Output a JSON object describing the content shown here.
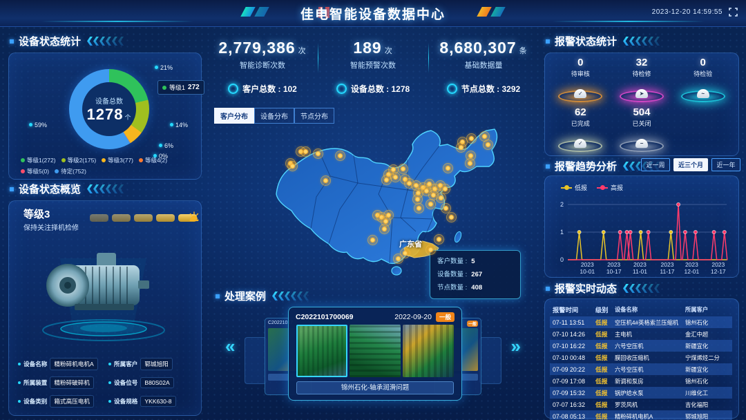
{
  "header": {
    "title": "佳电智能设备数据中心",
    "datetime": "2023-12-20 14:59:55"
  },
  "left": {
    "status_stats": {
      "title": "设备状态统计",
      "center": {
        "label": "设备总数",
        "value": "1278",
        "unit": "个"
      },
      "chip": {
        "label": "等级1",
        "value": "272"
      },
      "callouts": [
        "21%",
        "14%",
        "6%",
        "0%",
        "59%"
      ]
    },
    "overview": {
      "title": "设备状态概览",
      "level": "等级3",
      "advice": "保持关注择机检修",
      "bars": 5,
      "details": [
        {
          "label": "设备名称",
          "value": "精粉碎机电机A"
        },
        {
          "label": "所属客户",
          "value": "郓城旭阳"
        },
        {
          "label": "所属装置",
          "value": "精粉碎破碎机"
        },
        {
          "label": "设备位号",
          "value": "B80S02A"
        },
        {
          "label": "设备类别",
          "value": "箱式高压电机"
        },
        {
          "label": "设备规格",
          "value": "YKK630-8"
        }
      ]
    }
  },
  "center": {
    "kpis": [
      {
        "value": "2,779,386",
        "unit": "次",
        "label": "智能诊断次数"
      },
      {
        "value": "189",
        "unit": "次",
        "label": "智能预警次数"
      },
      {
        "value": "8,680,307",
        "unit": "条",
        "label": "基础数据量"
      }
    ],
    "totals": [
      {
        "label": "客户总数",
        "value": "102"
      },
      {
        "label": "设备总数",
        "value": "1278"
      },
      {
        "label": "节点总数",
        "value": "3292"
      }
    ],
    "tabs": [
      {
        "label": "客户分布",
        "active": true
      },
      {
        "label": "设备分布",
        "active": false
      },
      {
        "label": "节点分布",
        "active": false
      }
    ],
    "map": {
      "region_label": "广东省",
      "tooltip": [
        {
          "label": "客户数量",
          "value": "5"
        },
        {
          "label": "设备数量",
          "value": "267"
        },
        {
          "label": "节点数量",
          "value": "408"
        }
      ],
      "dots": [
        [
          95,
          36
        ],
        [
          102,
          36
        ],
        [
          120,
          39
        ],
        [
          80,
          53
        ],
        [
          83,
          57
        ],
        [
          152,
          42
        ],
        [
          131,
          78
        ],
        [
          329,
          22
        ],
        [
          342,
          17
        ],
        [
          361,
          14
        ],
        [
          366,
          26
        ],
        [
          327,
          30
        ],
        [
          341,
          42
        ],
        [
          340,
          53
        ],
        [
          308,
          60
        ],
        [
          222,
          69
        ],
        [
          229,
          62
        ],
        [
          243,
          61
        ],
        [
          219,
          77
        ],
        [
          232,
          73
        ],
        [
          246,
          76
        ],
        [
          252,
          82
        ],
        [
          262,
          85
        ],
        [
          272,
          88
        ],
        [
          281,
          83
        ],
        [
          289,
          90
        ],
        [
          297,
          85
        ],
        [
          304,
          90
        ],
        [
          265,
          96
        ],
        [
          277,
          93
        ],
        [
          287,
          99
        ],
        [
          298,
          103
        ],
        [
          264,
          105
        ],
        [
          283,
          112
        ],
        [
          266,
          118
        ],
        [
          305,
          118
        ],
        [
          313,
          131
        ],
        [
          206,
          128
        ],
        [
          212,
          131
        ],
        [
          222,
          128
        ],
        [
          218,
          137
        ],
        [
          216,
          148
        ],
        [
          199,
          164
        ],
        [
          295,
          163
        ],
        [
          283,
          178
        ],
        [
          246,
          183
        ],
        [
          236,
          191
        ]
      ]
    },
    "cases": {
      "title": "处理案例",
      "card": {
        "code": "C2022101700069",
        "date": "2022-09-20",
        "badge": "一般",
        "caption": "锦州石化-轴承润滑问题"
      },
      "left_card": {
        "code": "C20221017"
      },
      "right_card": {
        "date_partial": "0-14",
        "badge": "一般"
      }
    }
  },
  "right": {
    "alarm_stats": {
      "title": "报警状态统计",
      "items": [
        {
          "value": "0",
          "label": "待审核",
          "color": "#ffa22e",
          "icon": "✓"
        },
        {
          "value": "32",
          "label": "待检修",
          "color": "#ff4ddb",
          "icon": "➤"
        },
        {
          "value": "0",
          "label": "待检验",
          "color": "#1fe0f0",
          "icon": "~"
        },
        {
          "value": "62",
          "label": "已完成",
          "color": "#cdd9b4",
          "icon": "✓"
        },
        {
          "value": "504",
          "label": "已关闭",
          "color": "#a8b4c6",
          "icon": "−"
        }
      ]
    },
    "trend": {
      "title": "报警趋势分析",
      "buttons": [
        {
          "label": "近一周",
          "active": false
        },
        {
          "label": "近三个月",
          "active": true
        },
        {
          "label": "近一年",
          "active": false
        }
      ]
    },
    "alarms": {
      "title": "报警实时动态",
      "columns": [
        "报警时间",
        "级别",
        "设备名称",
        "所属客户"
      ],
      "rows": [
        [
          "07-11 13:51",
          "低报",
          "空压机4#英格索兰压缩机",
          "锦州石化"
        ],
        [
          "07-10 14:26",
          "低报",
          "主电机",
          "金汇中超"
        ],
        [
          "07-10 16:22",
          "低报",
          "六号空压机",
          "新疆宜化"
        ],
        [
          "07-10 00:48",
          "低报",
          "膜回收压缩机",
          "宁煤烯烃二分"
        ],
        [
          "07-09 20:22",
          "低报",
          "六号空压机",
          "新疆宜化"
        ],
        [
          "07-09 17:08",
          "低报",
          "新调和泵房",
          "锦州石化"
        ],
        [
          "07-09 15:32",
          "低报",
          "锅炉给水泵",
          "川维化工"
        ],
        [
          "07-07 16:32",
          "低报",
          "罗茨风机",
          "吉化福阳"
        ],
        [
          "07-08 05:13",
          "低报",
          "精粉碎机电机A",
          "郓城旭阳"
        ]
      ]
    }
  },
  "chart_data": [
    {
      "type": "pie",
      "title": "设备状态统计",
      "labels": [
        "等级1",
        "等级2",
        "等级3",
        "等级4",
        "等级5",
        "待定"
      ],
      "values": [
        272,
        175,
        77,
        2,
        0,
        752
      ],
      "percents": [
        "21%",
        "14%",
        "6%",
        "0%",
        "0%",
        "59%"
      ],
      "colors": [
        "#2fc25b",
        "#a0bf1f",
        "#f6b61e",
        "#ff7a2f",
        "#ff4d6a",
        "#3f9bf0"
      ],
      "center_label": "设备总数",
      "center_value": 1278,
      "center_unit": "个",
      "legend_position": "bottom"
    },
    {
      "type": "line",
      "title": "报警趋势分析",
      "ylim": [
        0,
        2
      ],
      "yticks": [
        0,
        1,
        2
      ],
      "xticks": [
        {
          "pos": 0.123,
          "line1": "2023",
          "line2": "10-01"
        },
        {
          "pos": 0.29,
          "line1": "2023",
          "line2": "10-17"
        },
        {
          "pos": 0.454,
          "line1": "2023",
          "line2": "11-01"
        },
        {
          "pos": 0.626,
          "line1": "2023",
          "line2": "11-17"
        },
        {
          "pos": 0.78,
          "line1": "2023",
          "line2": "12-01"
        },
        {
          "pos": 0.947,
          "line1": "2023",
          "line2": "12-17"
        }
      ],
      "grid": true,
      "legend_position": "top-left",
      "series": [
        {
          "name": "低报",
          "color": "#e9c427",
          "spikes": [
            {
              "x": 0.072,
              "y": 1
            },
            {
              "x": 0.225,
              "y": 1
            },
            {
              "x": 0.459,
              "y": 1
            },
            {
              "x": 0.649,
              "y": 1
            }
          ]
        },
        {
          "name": "高报",
          "color": "#ff3b6b",
          "spikes": [
            {
              "x": 0.329,
              "y": 1
            },
            {
              "x": 0.372,
              "y": 1
            },
            {
              "x": 0.394,
              "y": 1
            },
            {
              "x": 0.507,
              "y": 1
            },
            {
              "x": 0.696,
              "y": 2
            },
            {
              "x": 0.739,
              "y": 1
            },
            {
              "x": 0.804,
              "y": 1
            },
            {
              "x": 0.92,
              "y": 1
            },
            {
              "x": 0.986,
              "y": 1
            }
          ]
        }
      ]
    }
  ]
}
